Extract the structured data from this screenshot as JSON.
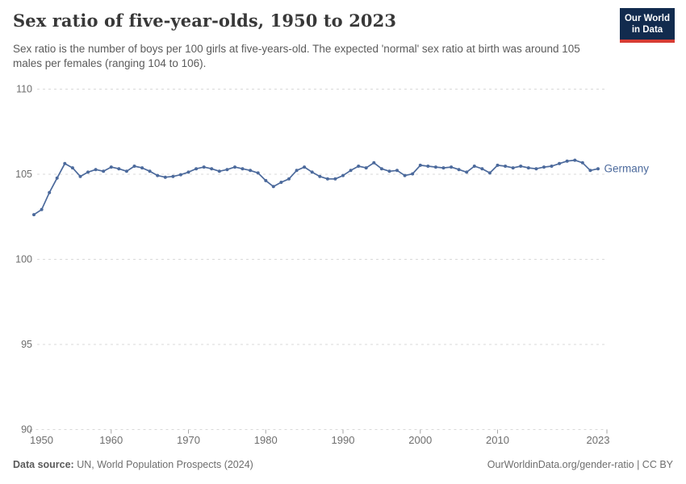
{
  "header": {
    "title": "Sex ratio of five-year-olds, 1950 to 2023",
    "subtitle": "Sex ratio is the number of boys per 100 girls at five-years-old. The expected 'normal' sex ratio at birth was around 105 males per females (ranging 104 to 106)."
  },
  "logo": {
    "line1": "Our World",
    "line2": "in Data",
    "bg_color": "#122B4E",
    "accent_color": "#D73C34"
  },
  "chart_data": {
    "type": "line",
    "title": "Sex ratio of five-year-olds, 1950 to 2023",
    "xlabel": "",
    "ylabel": "",
    "ylim": [
      90,
      110
    ],
    "yticks": [
      90,
      95,
      100,
      105,
      110
    ],
    "xticks": [
      "1950",
      "1960",
      "1970",
      "1980",
      "1990",
      "2000",
      "2010",
      "2023"
    ],
    "grid": "horizontal-dashed",
    "legend_position": "end-of-line-label",
    "line_color": "#4C6A9C",
    "gridline_color": "#d9d9d9",
    "axis_text_color": "#6e6e6e",
    "series": [
      {
        "name": "Germany",
        "x": [
          1950,
          1951,
          1952,
          1953,
          1954,
          1955,
          1956,
          1957,
          1958,
          1959,
          1960,
          1961,
          1962,
          1963,
          1964,
          1965,
          1966,
          1967,
          1968,
          1969,
          1970,
          1971,
          1972,
          1973,
          1974,
          1975,
          1976,
          1977,
          1978,
          1979,
          1980,
          1981,
          1982,
          1983,
          1984,
          1985,
          1986,
          1987,
          1988,
          1989,
          1990,
          1991,
          1992,
          1993,
          1994,
          1995,
          1996,
          1997,
          1998,
          1999,
          2000,
          2001,
          2002,
          2003,
          2004,
          2005,
          2006,
          2007,
          2008,
          2009,
          2010,
          2011,
          2012,
          2013,
          2014,
          2015,
          2016,
          2017,
          2018,
          2019,
          2020,
          2021,
          2022,
          2023
        ],
        "values": [
          102.6,
          102.9,
          103.9,
          104.75,
          105.6,
          105.35,
          104.85,
          105.1,
          105.25,
          105.15,
          105.4,
          105.3,
          105.15,
          105.45,
          105.35,
          105.15,
          104.9,
          104.8,
          104.85,
          104.95,
          105.1,
          105.3,
          105.4,
          105.3,
          105.15,
          105.25,
          105.4,
          105.3,
          105.2,
          105.05,
          104.6,
          104.25,
          104.5,
          104.7,
          105.2,
          105.4,
          105.1,
          104.85,
          104.7,
          104.7,
          104.9,
          105.2,
          105.45,
          105.35,
          105.65,
          105.3,
          105.15,
          105.2,
          104.9,
          105.0,
          105.5,
          105.45,
          105.4,
          105.35,
          105.4,
          105.25,
          105.1,
          105.45,
          105.3,
          105.05,
          105.5,
          105.45,
          105.35,
          105.45,
          105.35,
          105.3,
          105.4,
          105.45,
          105.6,
          105.75,
          105.8,
          105.65,
          105.2,
          105.3
        ]
      }
    ]
  },
  "footer": {
    "source_label": "Data source:",
    "source_text": " UN, World Population Prospects (2024)",
    "credit": "OurWorldinData.org/gender-ratio | CC BY"
  }
}
